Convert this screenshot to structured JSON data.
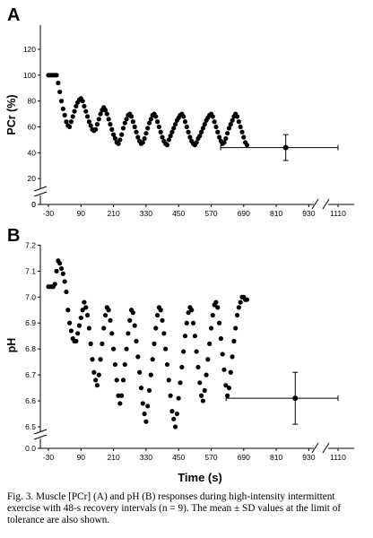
{
  "caption": "Fig. 3. Muscle [PCr] (A) and pH (B) responses during high-intensity intermittent exercise with 48-s recovery intervals (n = 9). The mean ± SD values at the limit of tolerance are also shown.",
  "chart_data": [
    {
      "type": "scatter",
      "panel_label": "A",
      "ylabel": "PCr (%)",
      "ylim": [
        0,
        120
      ],
      "xlim": [
        -30,
        1110
      ],
      "yticks": [
        0,
        20,
        40,
        60,
        80,
        100,
        120
      ],
      "xticks": [
        -30,
        90,
        210,
        330,
        450,
        570,
        690,
        810,
        930,
        1110
      ],
      "axis_breaks": [
        "y near 0",
        "x between 930 and 1110"
      ],
      "time_course": {
        "x": [
          -30,
          -24,
          -18,
          -12,
          -6,
          0,
          6,
          12,
          18,
          24,
          30,
          36,
          42,
          48,
          54,
          60,
          66,
          72,
          78,
          84,
          90,
          96,
          102,
          108,
          114,
          120,
          126,
          132,
          138,
          144,
          150,
          156,
          162,
          168,
          174,
          180,
          186,
          192,
          198,
          204,
          210,
          216,
          222,
          228,
          234,
          240,
          246,
          252,
          258,
          264,
          270,
          276,
          282,
          288,
          294,
          300,
          306,
          312,
          318,
          324,
          330,
          336,
          342,
          348,
          354,
          360,
          366,
          372,
          378,
          384,
          390,
          396,
          402,
          408,
          414,
          420,
          426,
          432,
          438,
          444,
          450,
          456,
          462,
          468,
          474,
          480,
          486,
          492,
          498,
          504,
          510,
          516,
          522,
          528,
          534,
          540,
          546,
          552,
          558,
          564,
          570,
          576,
          582,
          588,
          594,
          600,
          606,
          612,
          618,
          624,
          630,
          636,
          642,
          648,
          654,
          660,
          666,
          672,
          678,
          684,
          690,
          696,
          702
        ],
        "y": [
          100,
          100,
          100,
          100,
          100,
          100,
          94,
          87,
          80,
          74,
          69,
          64,
          61,
          60,
          64,
          68,
          72,
          76,
          79,
          81,
          82,
          80,
          76,
          72,
          68,
          64,
          61,
          58,
          57,
          58,
          62,
          66,
          70,
          73,
          75,
          73,
          70,
          66,
          62,
          58,
          54,
          51,
          48,
          47,
          50,
          54,
          59,
          63,
          66,
          69,
          70,
          68,
          64,
          60,
          56,
          52,
          49,
          47,
          48,
          51,
          55,
          59,
          63,
          66,
          69,
          70,
          68,
          64,
          60,
          56,
          52,
          49,
          47,
          46,
          50,
          53,
          56,
          59,
          62,
          65,
          67,
          69,
          70,
          68,
          64,
          60,
          56,
          52,
          49,
          47,
          46,
          48,
          51,
          53,
          56,
          59,
          62,
          65,
          67,
          69,
          70,
          68,
          64,
          60,
          56,
          52,
          49,
          47,
          48,
          51,
          55,
          59,
          62,
          65,
          68,
          70,
          68,
          64,
          60,
          56,
          52,
          48,
          46
        ]
      },
      "end_point": {
        "x": 845,
        "y": 44,
        "y_sd": 10,
        "x_sd": 240
      }
    },
    {
      "type": "scatter",
      "panel_label": "B",
      "ylabel": "pH",
      "xlabel": "Time (s)",
      "ylim": [
        6.45,
        7.2
      ],
      "yticks": [
        6.5,
        6.6,
        6.7,
        6.8,
        6.9,
        7.0,
        7.1,
        7.2
      ],
      "ybreak_label": "0.0",
      "xlim": [
        -30,
        1110
      ],
      "xticks": [
        -30,
        90,
        210,
        330,
        450,
        570,
        690,
        810,
        930,
        1110
      ],
      "axis_breaks": [
        "y near 0.0",
        "x between 930 and 1110"
      ],
      "time_course": {
        "x": [
          -30,
          -24,
          -18,
          -12,
          -6,
          0,
          6,
          12,
          18,
          24,
          30,
          36,
          42,
          48,
          54,
          60,
          66,
          72,
          78,
          84,
          90,
          96,
          102,
          108,
          114,
          120,
          126,
          132,
          138,
          144,
          150,
          156,
          162,
          168,
          174,
          180,
          186,
          192,
          198,
          204,
          210,
          216,
          222,
          228,
          234,
          240,
          246,
          252,
          258,
          264,
          270,
          276,
          282,
          288,
          294,
          300,
          306,
          312,
          318,
          324,
          330,
          336,
          342,
          348,
          354,
          360,
          366,
          372,
          378,
          384,
          390,
          396,
          402,
          408,
          414,
          420,
          426,
          432,
          438,
          444,
          450,
          456,
          462,
          468,
          474,
          480,
          486,
          492,
          498,
          504,
          510,
          516,
          522,
          528,
          534,
          540,
          546,
          552,
          558,
          564,
          570,
          576,
          582,
          588,
          594,
          600,
          606,
          612,
          618,
          624,
          630,
          636,
          642,
          648,
          654,
          660,
          666,
          672,
          678,
          684,
          690,
          696,
          702
        ],
        "y": [
          7.04,
          7.04,
          7.04,
          7.04,
          7.05,
          7.1,
          7.14,
          7.13,
          7.11,
          7.09,
          7.06,
          7.02,
          6.95,
          6.9,
          6.87,
          6.84,
          6.83,
          6.83,
          6.86,
          6.89,
          6.92,
          6.95,
          6.98,
          6.96,
          6.93,
          6.88,
          6.82,
          6.76,
          6.71,
          6.68,
          6.66,
          6.7,
          6.76,
          6.82,
          6.88,
          6.93,
          6.96,
          6.95,
          6.91,
          6.86,
          6.8,
          6.74,
          6.68,
          6.62,
          6.59,
          6.62,
          6.68,
          6.74,
          6.8,
          6.86,
          6.91,
          6.95,
          6.94,
          6.89,
          6.83,
          6.77,
          6.71,
          6.65,
          6.59,
          6.55,
          6.52,
          6.58,
          6.64,
          6.7,
          6.76,
          6.82,
          6.88,
          6.93,
          6.96,
          6.95,
          6.91,
          6.86,
          6.8,
          6.74,
          6.68,
          6.62,
          6.56,
          6.53,
          6.5,
          6.55,
          6.61,
          6.67,
          6.73,
          6.79,
          6.85,
          6.9,
          6.94,
          6.96,
          6.95,
          6.9,
          6.85,
          6.79,
          6.73,
          6.67,
          6.62,
          6.6,
          6.64,
          6.7,
          6.76,
          6.82,
          6.88,
          6.93,
          6.97,
          6.98,
          6.96,
          6.9,
          6.84,
          6.78,
          6.72,
          6.66,
          6.62,
          6.65,
          6.71,
          6.77,
          6.83,
          6.88,
          6.93,
          6.96,
          6.98,
          7.0,
          7.0,
          6.99,
          6.99
        ]
      },
      "end_point": {
        "x": 880,
        "y": 6.61,
        "y_sd": 0.1,
        "x_sd": 255
      }
    }
  ]
}
